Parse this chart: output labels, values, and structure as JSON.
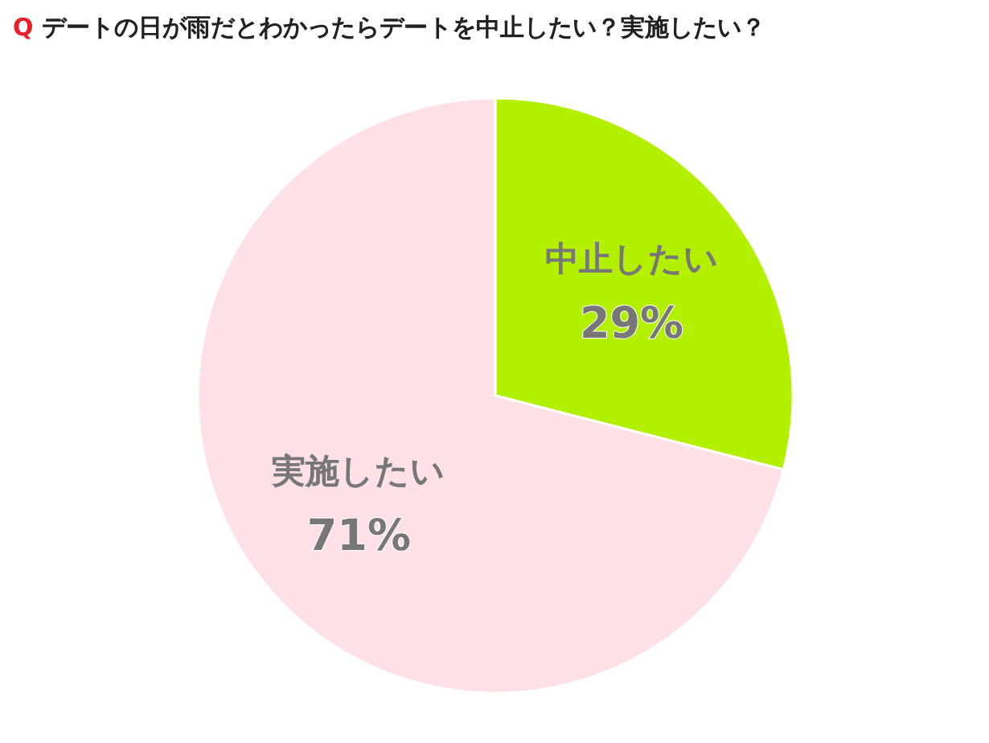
{
  "chart_data": {
    "type": "pie",
    "title": "Q デートの日が雨だとわかったらデートを中止したい？実施したい？",
    "categories": [
      "中止したい",
      "実施したい"
    ],
    "values": [
      29,
      71
    ],
    "value_labels": [
      "29%",
      "71%"
    ],
    "colors": [
      "#b3f000",
      "#fde1e6"
    ]
  }
}
